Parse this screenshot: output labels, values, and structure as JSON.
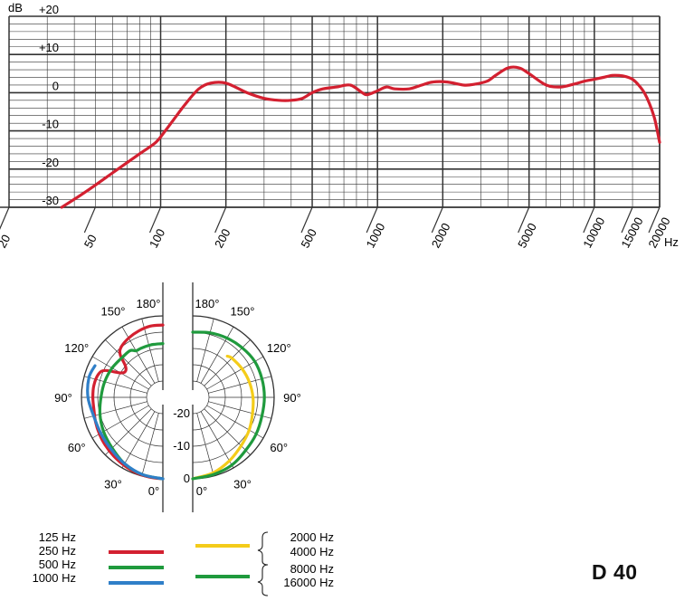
{
  "model": "D 40",
  "colors": {
    "red": "#d32030",
    "green": "#1f9a3d",
    "blue": "#2f7fc8",
    "yellow": "#f4cc1a",
    "grid": "#333333",
    "background": "#ffffff"
  },
  "chart_data": [
    {
      "type": "line",
      "title": "",
      "xlabel": "Hz",
      "ylabel": "dB",
      "x_scale": "log",
      "xlim": [
        20,
        20000
      ],
      "ylim": [
        -30,
        20
      ],
      "grid": true,
      "x_ticks": [
        20,
        50,
        100,
        200,
        500,
        1000,
        2000,
        5000,
        10000,
        15000,
        20000
      ],
      "x_tick_labels": [
        "20",
        "50",
        "100",
        "200",
        "500",
        "1000",
        "2000",
        "5000",
        "10000",
        "15000",
        "20000"
      ],
      "y_ticks": [
        20,
        10,
        0,
        -10,
        -20,
        -30
      ],
      "y_tick_labels": [
        "+20",
        "+10",
        "0",
        "-10",
        "-20",
        "-30"
      ],
      "series": [
        {
          "color": "#d32030",
          "x": [
            35,
            45,
            60,
            80,
            95,
            105,
            115,
            130,
            150,
            170,
            200,
            250,
            300,
            350,
            400,
            450,
            500,
            560,
            650,
            750,
            850,
            900,
            1000,
            1100,
            1200,
            1400,
            1600,
            1800,
            2100,
            2500,
            2800,
            3200,
            3500,
            4000,
            4500,
            5000,
            6000,
            7000,
            8000,
            9000,
            10000,
            11000,
            12000,
            13000,
            14000,
            15000,
            16000,
            17000,
            18000,
            19000,
            20000
          ],
          "y": [
            -30,
            -26,
            -21,
            -16,
            -13,
            -10,
            -7,
            -3,
            1,
            2.5,
            2.5,
            0,
            -1.5,
            -2,
            -2,
            -1.5,
            0,
            1,
            1.5,
            2,
            0,
            -0.5,
            0.5,
            1.5,
            1,
            1,
            2,
            2.8,
            2.8,
            2,
            2.2,
            3,
            4.5,
            6.5,
            6.5,
            5,
            2,
            1.5,
            2.2,
            3,
            3.5,
            4,
            4.5,
            4.5,
            4.2,
            3.5,
            2,
            0,
            -3,
            -7,
            -13
          ]
        }
      ]
    },
    {
      "type": "polar",
      "title": "",
      "angle_labels": [
        "0°",
        "30°",
        "60°",
        "90°",
        "120°",
        "150°",
        "180°"
      ],
      "radial_labels": [
        "0",
        "-10",
        "-20"
      ],
      "radial_range_db": [
        -25,
        0
      ],
      "legend": [
        {
          "color": "#d32030",
          "labels": [
            "125 Hz",
            "250 Hz"
          ]
        },
        {
          "color": "#1f9a3d",
          "labels": [
            "500 Hz"
          ]
        },
        {
          "color": "#2f7fc8",
          "labels": [
            "1000 Hz"
          ]
        },
        {
          "color": "#f4cc1a",
          "labels": [
            "2000 Hz",
            "4000 Hz"
          ]
        },
        {
          "color": "#1f9a3d",
          "labels": [
            "8000 Hz",
            "16000 Hz"
          ]
        }
      ],
      "series": [
        {
          "name": "125 Hz, 250 Hz",
          "side": "left",
          "color": "#d32030",
          "angles_deg": [
            0,
            10,
            20,
            30,
            40,
            50,
            60,
            70,
            80,
            90,
            100,
            110,
            115,
            120,
            125,
            130,
            135,
            140,
            150,
            160,
            170,
            180
          ],
          "db": [
            0,
            -0.2,
            -0.5,
            -1,
            -1.5,
            -2,
            -2.5,
            -3,
            -3.5,
            -3.5,
            -3.5,
            -4,
            -5.5,
            -10,
            -11,
            -10,
            -6.5,
            -5,
            -4,
            -3.3,
            -2.8,
            -2.8
          ]
        },
        {
          "name": "500 Hz",
          "side": "left",
          "color": "#1f9a3d",
          "angles_deg": [
            0,
            15,
            30,
            45,
            60,
            75,
            90,
            105,
            120,
            135,
            145,
            150,
            155,
            160,
            165,
            170,
            180
          ],
          "db": [
            0,
            -0.5,
            -1.5,
            -3,
            -4,
            -5,
            -6,
            -6.5,
            -7,
            -7.5,
            -7.5,
            -8.5,
            -8.5,
            -8.5,
            -8.5,
            -8.5,
            -8.5
          ]
        },
        {
          "name": "1000 Hz",
          "side": "left",
          "color": "#2f7fc8",
          "angles_deg": [
            0,
            15,
            30,
            45,
            60,
            75,
            90,
            105,
            115
          ],
          "db": [
            0,
            -0.5,
            -1.5,
            -2.5,
            -3,
            -3,
            -2,
            -1.5,
            -2
          ]
        },
        {
          "name": "2000 Hz, 4000 Hz",
          "side": "right",
          "color": "#f4cc1a",
          "angles_deg": [
            0,
            15,
            30,
            45,
            60,
            75,
            90,
            105,
            120,
            135,
            140
          ],
          "db": [
            0,
            -1,
            -2.5,
            -4,
            -5,
            -6,
            -6.5,
            -7,
            -7.5,
            -8,
            -8.5
          ]
        },
        {
          "name": "8000 Hz, 16000 Hz",
          "side": "right",
          "color": "#1f9a3d",
          "angles_deg": [
            0,
            15,
            30,
            45,
            60,
            75,
            90,
            105,
            120,
            135,
            150,
            165,
            180
          ],
          "db": [
            0,
            -0.5,
            -1,
            -2,
            -2.5,
            -3,
            -3,
            -3,
            -3,
            -3.5,
            -4,
            -4.5,
            -5
          ]
        }
      ]
    }
  ]
}
